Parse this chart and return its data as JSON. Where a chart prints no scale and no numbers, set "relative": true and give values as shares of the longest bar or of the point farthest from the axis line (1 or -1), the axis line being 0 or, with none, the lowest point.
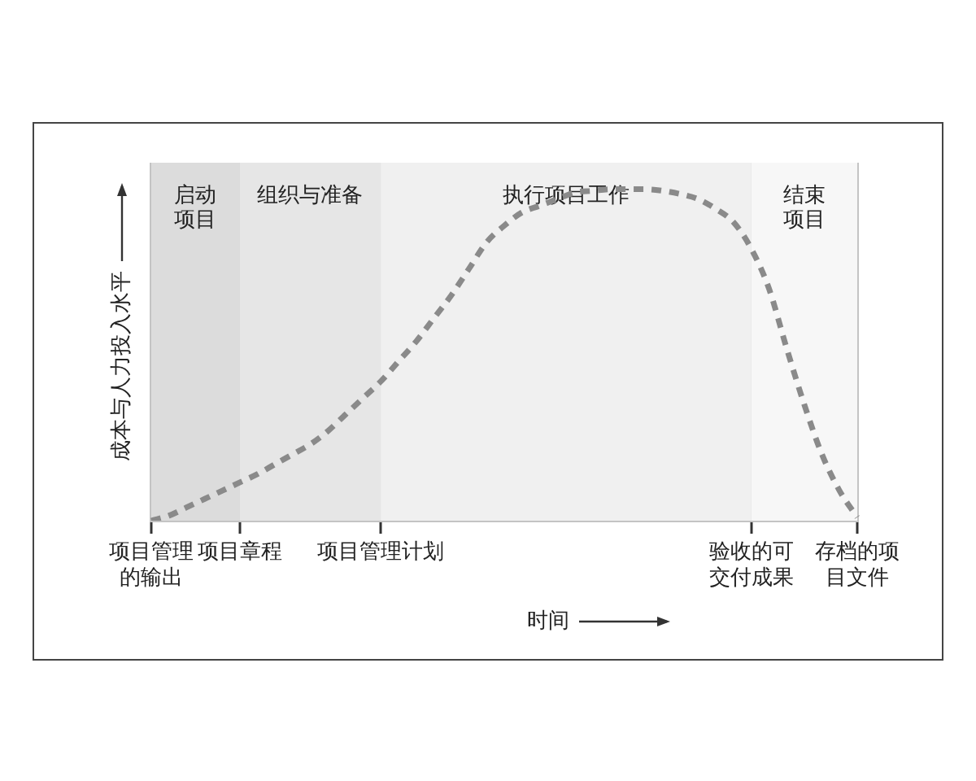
{
  "chart_data": {
    "type": "line",
    "xlabel": "时间",
    "ylabel": "成本与人力投入水平",
    "relative": true,
    "tick_labels": "x",
    "grid": "x",
    "line_style": "dashed",
    "marker": "none",
    "color": "#8a8a8a",
    "categories": [
      "项目管理的输出",
      null,
      null,
      null,
      null,
      "项目章程",
      null,
      null,
      null,
      null,
      null,
      null,
      null,
      "项目管理计划",
      null,
      null,
      null,
      null,
      null,
      null,
      null,
      null,
      null,
      null,
      null,
      null,
      null,
      null,
      null,
      null,
      null,
      null,
      null,
      null,
      "验收的可交付成果",
      null,
      null,
      null,
      null,
      null,
      "存档的项目文件"
    ],
    "values": [
      0.0,
      0.015,
      0.04,
      0.065,
      0.09,
      0.115,
      0.14,
      0.17,
      0.2,
      0.23,
      0.27,
      0.32,
      0.37,
      0.42,
      0.48,
      0.54,
      0.61,
      0.68,
      0.76,
      0.84,
      0.89,
      0.93,
      0.95,
      0.97,
      0.99,
      0.995,
      1.0,
      1.0,
      1.0,
      0.995,
      0.985,
      0.97,
      0.94,
      0.9,
      0.82,
      0.7,
      0.52,
      0.35,
      0.2,
      0.09,
      0.01
    ],
    "bands": [
      {
        "axis": "x",
        "from": "项目管理的输出",
        "to": "项目章程",
        "label": "启动项目",
        "color": "#dcdcdc"
      },
      {
        "axis": "x",
        "from": "项目章程",
        "to": "项目管理计划",
        "label": "组织与准备",
        "color": "#e6e6e6"
      },
      {
        "axis": "x",
        "from": "项目管理计划",
        "to": "验收的可交付成果",
        "label": "执行项目工作",
        "color": "#f0f0f0"
      },
      {
        "axis": "x",
        "from": "验收的可交付成果",
        "to": "存档的项目文件",
        "label": "结束项目",
        "color": "#f7f7f7"
      }
    ]
  }
}
